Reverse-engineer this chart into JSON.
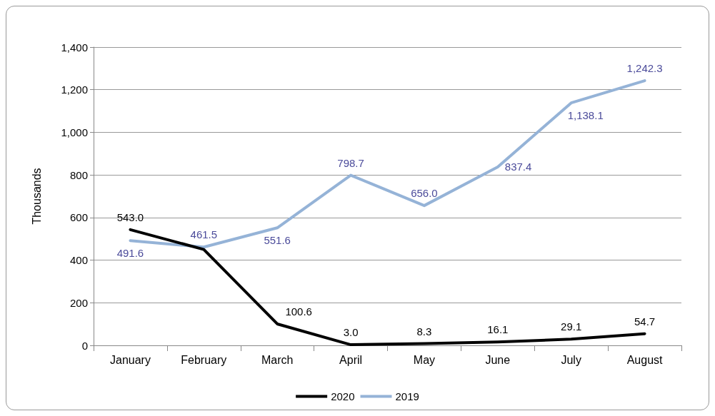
{
  "chart_data": {
    "type": "line",
    "ylabel": "Thousands",
    "categories": [
      "January",
      "February",
      "March",
      "April",
      "May",
      "June",
      "July",
      "August"
    ],
    "series": [
      {
        "name": "2020",
        "color": "#000000",
        "values": [
          543.0,
          450,
          100.6,
          3.0,
          8.3,
          16.1,
          29.1,
          54.7
        ],
        "value_labels": [
          "543.0",
          null,
          "100.6",
          "3.0",
          "8.3",
          "16.1",
          "29.1",
          "54.7"
        ]
      },
      {
        "name": "2019",
        "color": "#95b3d7",
        "values": [
          491.6,
          461.5,
          551.6,
          798.7,
          656.0,
          837.4,
          1138.1,
          1242.3
        ],
        "value_labels": [
          "491.6",
          "461.5",
          "551.6",
          "798.7",
          "656.0",
          "837.4",
          "1,138.1",
          "1,242.3"
        ]
      }
    ],
    "ylim": [
      0,
      1400
    ],
    "yticks": [
      0,
      200,
      400,
      600,
      800,
      {
        "value": 1000,
        "label": "1,000"
      },
      {
        "value": 1200,
        "label": "1,200"
      },
      {
        "value": 1400,
        "label": "1,400"
      }
    ],
    "grid": "y",
    "legend": "bottom",
    "marker": "none",
    "line_style": "solid"
  }
}
